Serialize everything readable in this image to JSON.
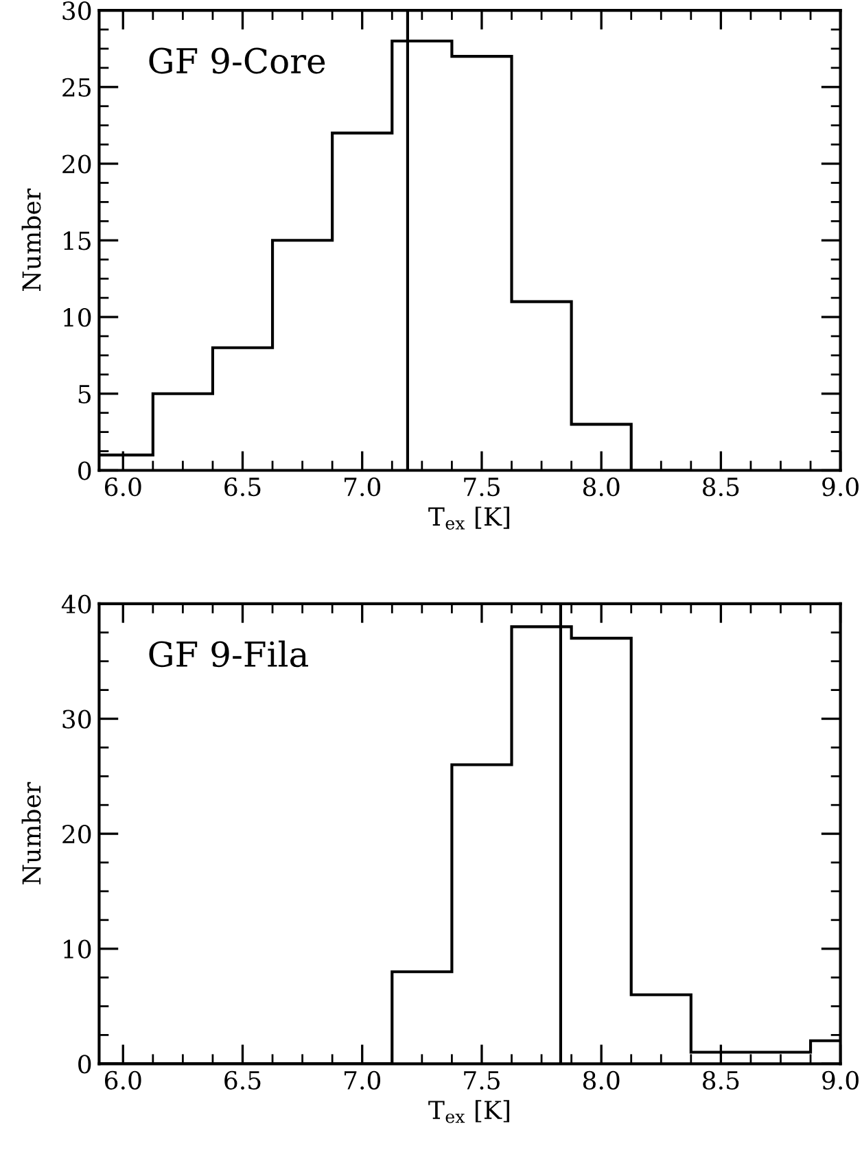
{
  "chart_data": [
    {
      "type": "histogram",
      "xlabel": "T$_{ex}$ [K]",
      "ylabel": "Number",
      "annotations": [
        "GF 9-Core"
      ],
      "bins": [
        5.9,
        6.125,
        6.375,
        6.625,
        6.875,
        7.125,
        7.375,
        7.625,
        7.875,
        8.125,
        8.375
      ],
      "values": [
        1,
        5,
        8,
        15,
        22,
        28,
        27,
        11,
        3,
        0
      ],
      "color": "#000000",
      "xlim": [
        5.9,
        9.0
      ],
      "ylim": [
        0,
        30
      ],
      "xticks": [
        {
          "value": 6.0,
          "label": "6.0"
        },
        {
          "value": 6.5,
          "label": "6.5"
        },
        {
          "value": 7.0,
          "label": "7.0"
        },
        {
          "value": 7.5,
          "label": "7.5"
        },
        {
          "value": 8.0,
          "label": "8.0"
        },
        {
          "value": 8.5,
          "label": "8.5"
        },
        {
          "value": 9.0,
          "label": "9.0"
        }
      ],
      "yticks": [
        0,
        5,
        10,
        15,
        20,
        25,
        30
      ],
      "ref_lines": [
        {
          "axis": "x",
          "value": 7.19,
          "color": "#000000"
        }
      ],
      "grid": false,
      "legend": false
    },
    {
      "type": "histogram",
      "xlabel": "T$_{ex}$ [K]",
      "ylabel": "Number",
      "annotations": [
        "GF 9-Fila"
      ],
      "bins": [
        5.9,
        6.125,
        6.375,
        6.625,
        6.875,
        7.125,
        7.375,
        7.625,
        7.875,
        8.125,
        8.375,
        8.625,
        8.875,
        9.0
      ],
      "values": [
        0,
        0,
        0,
        0,
        0,
        8,
        26,
        38,
        37,
        6,
        1,
        1,
        2
      ],
      "color": "#000000",
      "xlim": [
        5.9,
        9.0
      ],
      "ylim": [
        0,
        40
      ],
      "xticks": [
        {
          "value": 6.0,
          "label": "6.0"
        },
        {
          "value": 6.5,
          "label": "6.5"
        },
        {
          "value": 7.0,
          "label": "7.0"
        },
        {
          "value": 7.5,
          "label": "7.5"
        },
        {
          "value": 8.0,
          "label": "8.0"
        },
        {
          "value": 8.5,
          "label": "8.5"
        },
        {
          "value": 9.0,
          "label": "9.0"
        }
      ],
      "yticks": [
        0,
        10,
        20,
        30,
        40
      ],
      "ref_lines": [
        {
          "axis": "x",
          "value": 7.83,
          "color": "#000000"
        }
      ],
      "grid": false,
      "legend": false
    }
  ]
}
